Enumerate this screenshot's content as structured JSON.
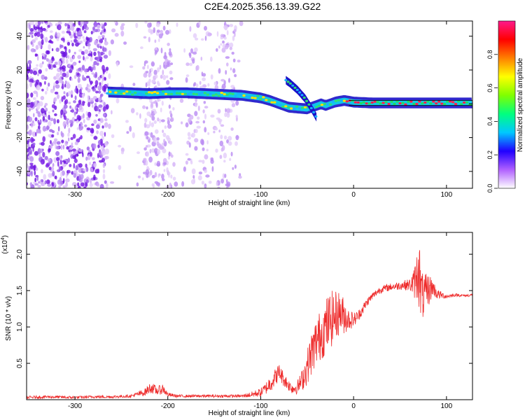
{
  "title": "C2E4.2025.356.13.39.G22",
  "colors": {
    "snr_line": "#ee2b2b",
    "ridge_outline": "#1a12c8",
    "scatter_purple": "#7b1fe6"
  },
  "chart_data": [
    {
      "type": "heatmap",
      "xlabel": "Height of straight line (km)",
      "ylabel": "Frequency (Hz)",
      "xlim": [
        -352,
        128
      ],
      "ylim": [
        -50,
        49
      ],
      "x_ticks": [
        -300,
        -200,
        -100,
        0,
        100
      ],
      "x_tick_labels": [
        "-300",
        "-200",
        "-100",
        "0",
        "100"
      ],
      "y_ticks": [
        -40,
        -20,
        0,
        20,
        40
      ],
      "y_tick_labels": [
        "-40",
        "-20",
        "0",
        "20",
        "40"
      ],
      "colorbar": {
        "label": "Normalized spectral amplitude",
        "range": [
          0,
          1
        ],
        "ticks": [
          0,
          0.2,
          0.4,
          0.6,
          0.8
        ],
        "tick_labels": [
          "0.0",
          "0.2",
          "0.4",
          "0.6",
          "0.8"
        ],
        "colormap": [
          "#ffffff",
          "#b060ff",
          "#2000ff",
          "#00c8ff",
          "#00ff80",
          "#80ff00",
          "#ffff00",
          "#ff8000",
          "#ff0000",
          "#ff1a8c"
        ]
      },
      "ridge": {
        "x": [
          -265,
          -240,
          -220,
          -200,
          -180,
          -160,
          -140,
          -120,
          -100,
          -90,
          -80,
          -70,
          -60,
          -50,
          -45,
          -40,
          -35,
          -30,
          -20,
          -10,
          0,
          20,
          40,
          60,
          80,
          100,
          128
        ],
        "freq": [
          7,
          6.5,
          6,
          6.5,
          6.5,
          6,
          5.5,
          5,
          3.5,
          2,
          0,
          -2,
          -2.5,
          -3,
          -2,
          -1,
          0,
          -1,
          1,
          2,
          1,
          0.5,
          0.5,
          0.5,
          0.5,
          0.5,
          0.5
        ]
      },
      "branch": {
        "x": [
          -73,
          -68,
          -60,
          -52,
          -45,
          -40
        ],
        "freq": [
          14,
          12,
          8,
          3,
          -3,
          -8
        ]
      },
      "scatter_region_x": [
        -352,
        -120
      ]
    },
    {
      "type": "line",
      "xlabel": "Height of straight line (km)",
      "ylabel": "SNR (10 * v/v)",
      "multiplier_label": "(x10",
      "multiplier_exponent": "4",
      "multiplier_close": ")",
      "xlim": [
        -352,
        128
      ],
      "ylim": [
        0,
        2.3
      ],
      "x_ticks": [
        -300,
        -200,
        -100,
        0,
        100
      ],
      "x_tick_labels": [
        "-300",
        "-200",
        "-100",
        "0",
        "100"
      ],
      "y_ticks": [
        0.5,
        1.0,
        1.5,
        2.0
      ],
      "y_tick_labels": [
        "0.5",
        "1.0",
        "1.5",
        "2.0"
      ],
      "series": [
        {
          "x": [
            -352,
            -330,
            -300,
            -280,
            -260,
            -240,
            -225,
            -218,
            -212,
            -205,
            -200,
            -190,
            -180,
            -160,
            -140,
            -120,
            -110,
            -100,
            -95,
            -90,
            -85,
            -80,
            -75,
            -70,
            -65,
            -60,
            -55,
            -50,
            -45,
            -40,
            -35,
            -30,
            -25,
            -20,
            -15,
            -10,
            -5,
            0,
            5,
            10,
            15,
            20,
            25,
            30,
            40,
            50,
            60,
            65,
            68,
            70,
            72,
            75,
            80,
            85,
            90,
            100,
            110,
            120,
            128
          ],
          "y": [
            0.03,
            0.04,
            0.03,
            0.04,
            0.04,
            0.05,
            0.1,
            0.17,
            0.12,
            0.15,
            0.07,
            0.05,
            0.05,
            0.05,
            0.05,
            0.05,
            0.07,
            0.1,
            0.15,
            0.22,
            0.3,
            0.38,
            0.28,
            0.2,
            0.15,
            0.18,
            0.28,
            0.45,
            0.65,
            0.8,
            0.9,
            1.0,
            1.1,
            1.15,
            1.2,
            1.15,
            1.1,
            1.1,
            1.15,
            1.25,
            1.35,
            1.42,
            1.48,
            1.52,
            1.55,
            1.57,
            1.58,
            1.6,
            1.7,
            1.9,
            1.5,
            1.4,
            1.5,
            1.55,
            1.45,
            1.42,
            1.44,
            1.43,
            1.44
          ],
          "noise_envelope": [
            0.02,
            0.02,
            0.02,
            0.02,
            0.02,
            0.02,
            0.05,
            0.08,
            0.06,
            0.07,
            0.03,
            0.02,
            0.02,
            0.02,
            0.02,
            0.02,
            0.04,
            0.06,
            0.08,
            0.12,
            0.12,
            0.12,
            0.1,
            0.08,
            0.08,
            0.1,
            0.15,
            0.25,
            0.3,
            0.35,
            0.35,
            0.4,
            0.4,
            0.35,
            0.3,
            0.25,
            0.15,
            0.1,
            0.08,
            0.07,
            0.06,
            0.05,
            0.05,
            0.05,
            0.05,
            0.06,
            0.08,
            0.2,
            0.35,
            0.6,
            0.4,
            0.3,
            0.25,
            0.12,
            0.07,
            0.03,
            0.02,
            0.02,
            0.02
          ]
        }
      ]
    }
  ]
}
